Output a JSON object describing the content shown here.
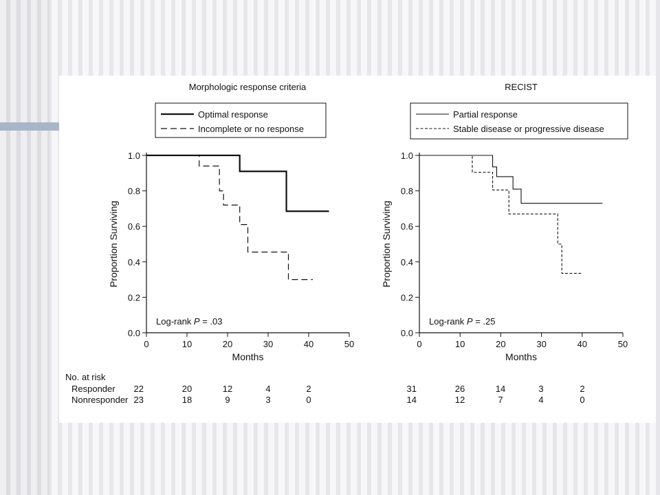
{
  "chart_data": [
    {
      "type": "line",
      "title": "Morphologic response criteria",
      "xlabel": "Months",
      "ylabel": "Proportion Surviving",
      "xlim": [
        0,
        50
      ],
      "ylim": [
        0,
        1.0
      ],
      "xticks": [
        "0",
        "10",
        "20",
        "30",
        "40",
        "50"
      ],
      "yticks": [
        "0.0",
        "0.2",
        "0.4",
        "0.6",
        "0.8",
        "1.0"
      ],
      "annotation": {
        "prefix": "Log-rank ",
        "p_label": "P",
        "value": " = .03"
      },
      "series": [
        {
          "name": "Optimal response",
          "style": "solid-thick",
          "steps": [
            [
              0,
              1.0
            ],
            [
              23,
              0.91
            ],
            [
              34.5,
              0.685
            ],
            [
              45,
              0.685
            ]
          ]
        },
        {
          "name": "Incomplete or no response",
          "style": "dashed-long",
          "steps": [
            [
              0,
              1.0
            ],
            [
              13,
              0.94
            ],
            [
              18,
              0.8
            ],
            [
              19,
              0.72
            ],
            [
              23,
              0.61
            ],
            [
              25,
              0.455
            ],
            [
              35,
              0.3
            ],
            [
              41,
              0.3
            ]
          ]
        }
      ],
      "at_risk": {
        "header": "No. at risk",
        "rows": [
          {
            "label": "Responder",
            "values": [
              "22",
              "20",
              "12",
              "4",
              "2"
            ]
          },
          {
            "label": "Nonresponder",
            "values": [
              "23",
              "18",
              "9",
              "3",
              "0"
            ]
          }
        ]
      }
    },
    {
      "type": "line",
      "title": "RECIST",
      "xlabel": "Months",
      "ylabel": "Proportion Surviving",
      "xlim": [
        0,
        50
      ],
      "ylim": [
        0,
        1.0
      ],
      "xticks": [
        "0",
        "10",
        "20",
        "30",
        "40",
        "50"
      ],
      "yticks": [
        "0.0",
        "0.2",
        "0.4",
        "0.6",
        "0.8",
        "1.0"
      ],
      "annotation": {
        "prefix": "Log-rank ",
        "p_label": "P",
        "value": " = .25"
      },
      "series": [
        {
          "name": "Partial response",
          "style": "solid-thin",
          "steps": [
            [
              0,
              1.0
            ],
            [
              18,
              0.935
            ],
            [
              19,
              0.88
            ],
            [
              23,
              0.81
            ],
            [
              25,
              0.73
            ],
            [
              45,
              0.73
            ]
          ]
        },
        {
          "name": "Stable disease or progressive disease",
          "style": "dashed-short",
          "steps": [
            [
              0,
              1.0
            ],
            [
              13,
              0.905
            ],
            [
              18,
              0.805
            ],
            [
              22,
              0.67
            ],
            [
              34,
              0.5
            ],
            [
              35,
              0.335
            ],
            [
              40,
              0.335
            ]
          ]
        }
      ],
      "at_risk": {
        "rows": [
          {
            "values": [
              "31",
              "26",
              "14",
              "3",
              "2"
            ]
          },
          {
            "values": [
              "14",
              "12",
              "7",
              "4",
              "0"
            ]
          }
        ]
      }
    }
  ]
}
